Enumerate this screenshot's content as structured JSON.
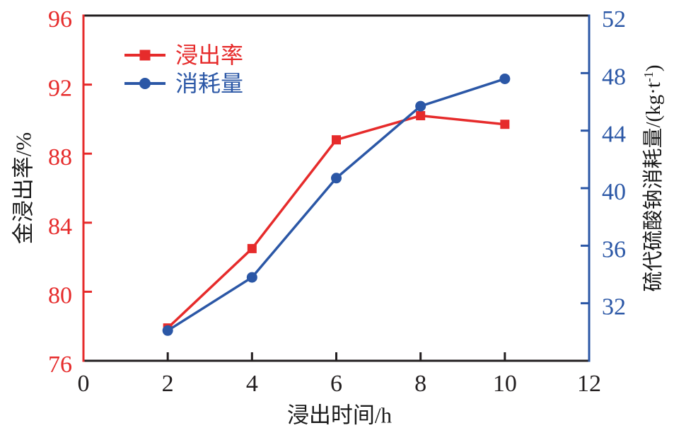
{
  "colors": {
    "red": "#e62b2b",
    "blue": "#2b57a6",
    "frame": "#231f20",
    "text": "#1a1a1a",
    "background": "#ffffff"
  },
  "chart_data": {
    "type": "line",
    "title": "",
    "x": [
      2,
      4,
      6,
      8,
      10
    ],
    "xlabel": "浸出时间/h",
    "xlim": [
      0,
      12
    ],
    "xticks": [
      0,
      2,
      4,
      6,
      8,
      10,
      12
    ],
    "ylabel_left": "金浸出率/%",
    "ylim_left": [
      76,
      96
    ],
    "yticks_left": [
      76,
      80,
      84,
      88,
      92,
      96
    ],
    "ylabel_right": "硫代硫酸钠消耗量/(kg·t⁻¹)",
    "ylabel_right_parts": {
      "pre": "硫代硫酸钠消耗量/(kg·t",
      "sup": "-1",
      "post": ")"
    },
    "ylim_right": [
      28,
      52
    ],
    "yticks_right": [
      32,
      36,
      40,
      44,
      48,
      52
    ],
    "grid": false,
    "legend_position": "upper-left-inside",
    "series": [
      {
        "id": "leach-rate",
        "name": "浸出率",
        "axis": "left",
        "color": "#e62b2b",
        "marker": "square",
        "values": [
          77.9,
          82.5,
          88.8,
          90.2,
          89.7
        ]
      },
      {
        "id": "consumption",
        "name": "消耗量",
        "axis": "right",
        "color": "#2b57a6",
        "marker": "circle",
        "values": [
          30.1,
          33.8,
          40.7,
          45.7,
          47.6
        ]
      }
    ]
  }
}
